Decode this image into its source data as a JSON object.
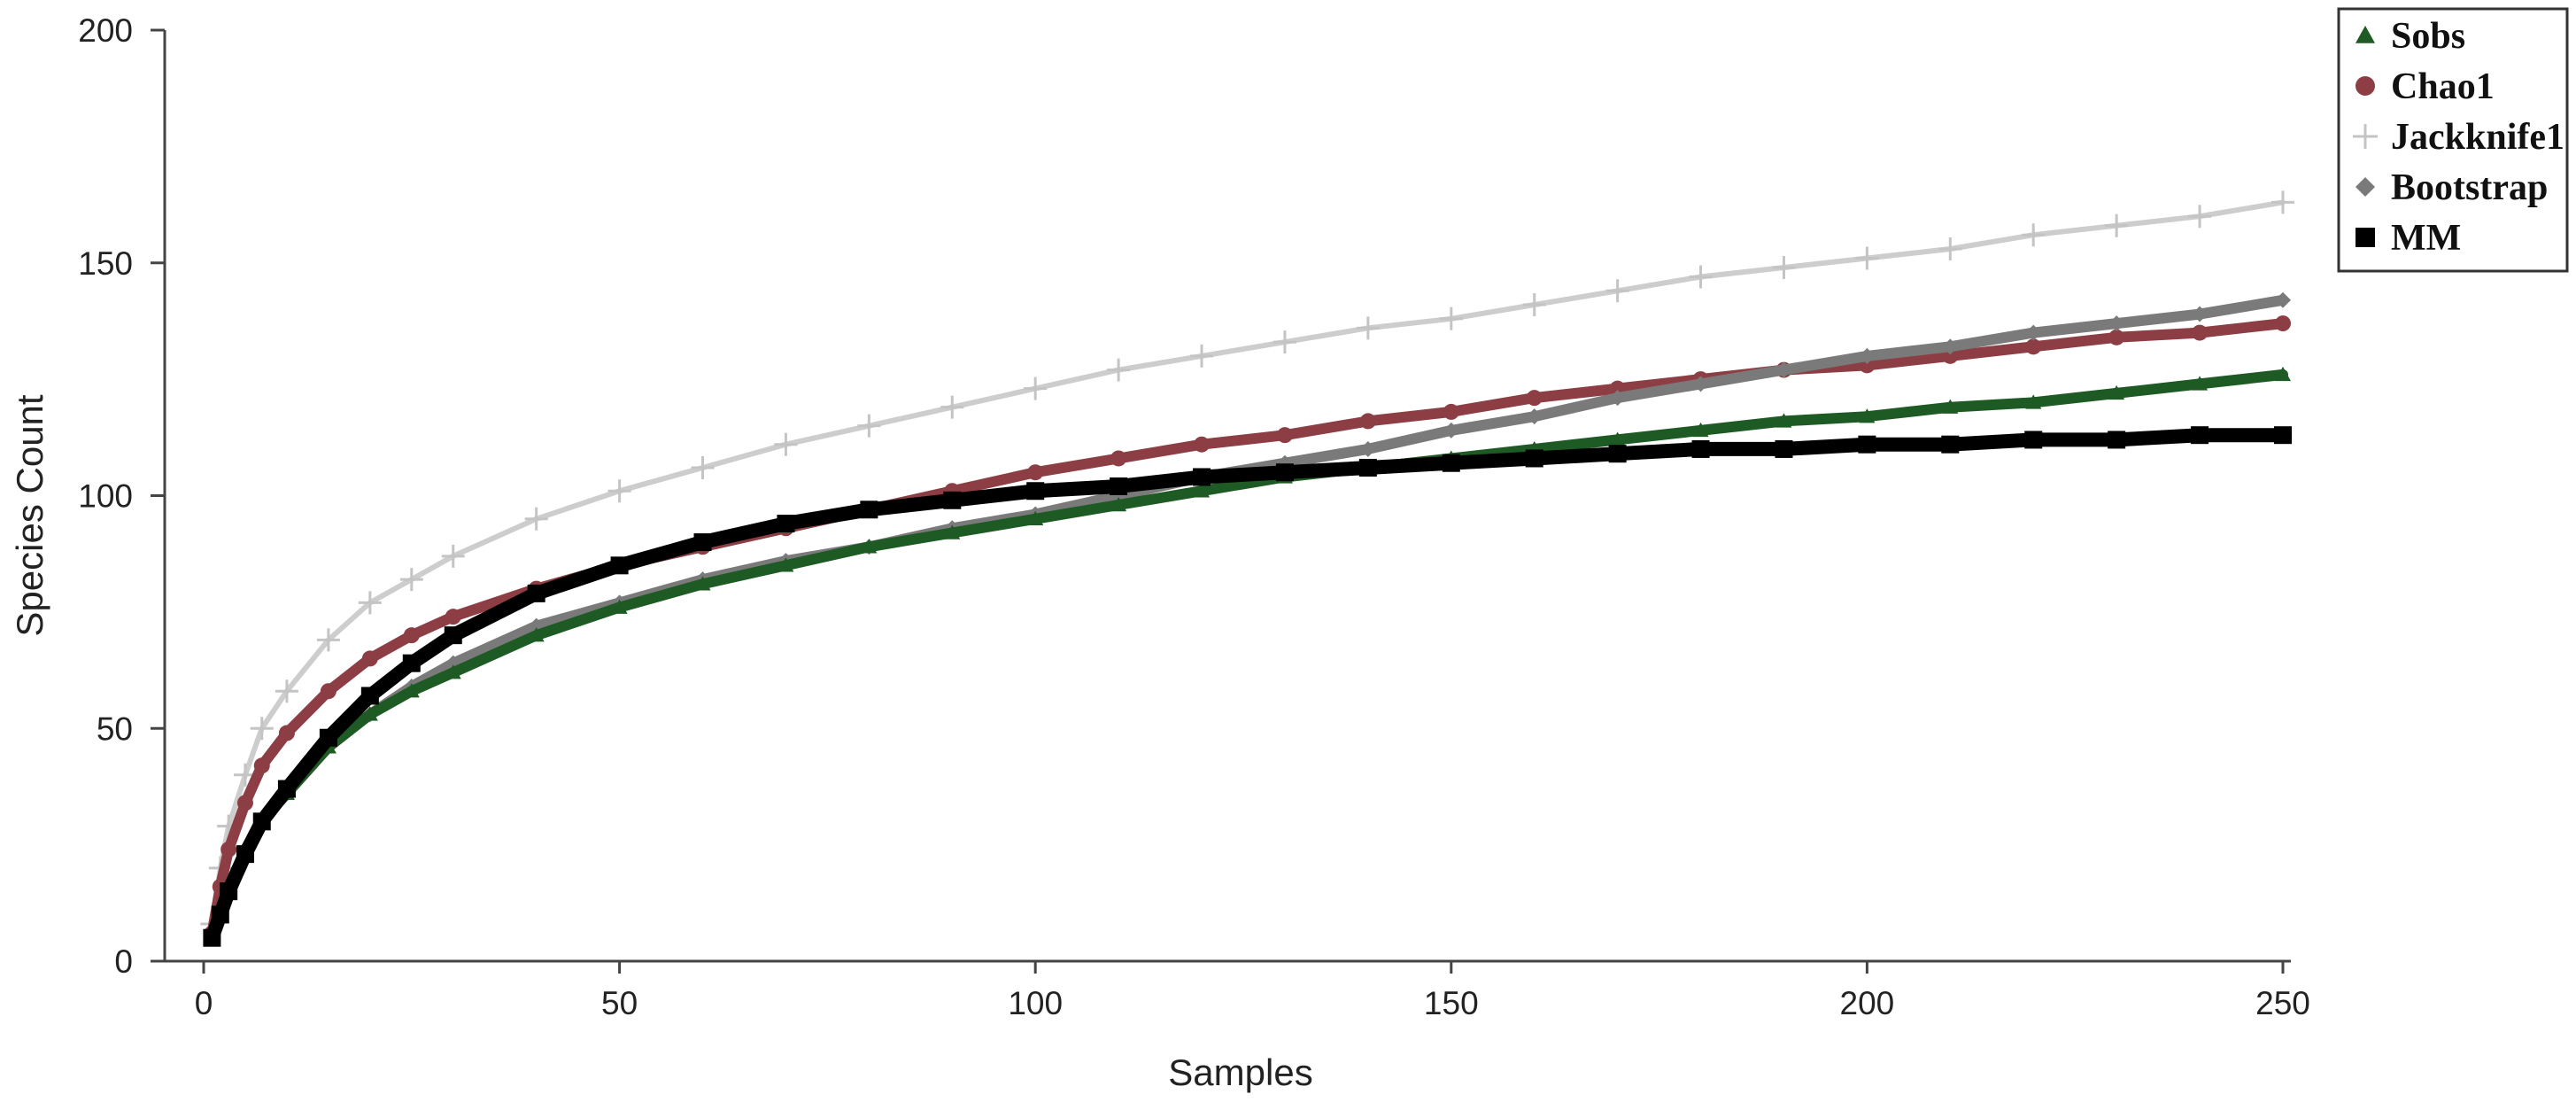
{
  "chart_data": {
    "type": "line",
    "xlabel": "Samples",
    "ylabel": "Species Count",
    "xlim": [
      0,
      250
    ],
    "ylim": [
      0,
      200
    ],
    "xticks": [
      "0",
      "50",
      "100",
      "150",
      "200",
      "250"
    ],
    "yticks": [
      "0",
      "50",
      "100",
      "150",
      "200"
    ],
    "grid": false,
    "legend_position": "top-right",
    "x": [
      1,
      2,
      3,
      5,
      7,
      10,
      15,
      20,
      25,
      30,
      40,
      50,
      60,
      70,
      80,
      90,
      100,
      110,
      120,
      130,
      140,
      150,
      160,
      170,
      180,
      190,
      200,
      210,
      220,
      230,
      240,
      250
    ],
    "series": [
      {
        "name": "Sobs",
        "marker": "triangle-icon",
        "color": "#1e5a24",
        "values": [
          5,
          11,
          16,
          24,
          30,
          36,
          46,
          53,
          58,
          62,
          70,
          76,
          81,
          85,
          89,
          92,
          95,
          98,
          101,
          104,
          106,
          108,
          110,
          112,
          114,
          116,
          117,
          119,
          120,
          122,
          124,
          126
        ]
      },
      {
        "name": "Chao1",
        "marker": "circle-icon",
        "color": "#8c3e44",
        "values": [
          6,
          16,
          24,
          34,
          42,
          49,
          58,
          65,
          70,
          74,
          80,
          85,
          89,
          93,
          97,
          101,
          105,
          108,
          111,
          113,
          116,
          118,
          121,
          123,
          125,
          127,
          128,
          130,
          132,
          134,
          135,
          137
        ]
      },
      {
        "name": "Jackknife1",
        "marker": "plus-icon",
        "color": "#c4c4c4",
        "values": [
          8,
          20,
          29,
          40,
          50,
          58,
          69,
          77,
          82,
          87,
          95,
          101,
          106,
          111,
          115,
          119,
          123,
          127,
          130,
          133,
          136,
          138,
          141,
          144,
          147,
          149,
          151,
          153,
          156,
          158,
          160,
          163
        ]
      },
      {
        "name": "Bootstrap",
        "marker": "diamond-icon",
        "color": "#7a7a7a",
        "values": [
          5,
          11,
          16,
          24,
          30,
          36,
          46,
          53,
          59,
          64,
          72,
          77,
          82,
          86,
          89,
          93,
          96,
          100,
          104,
          107,
          110,
          114,
          117,
          121,
          124,
          127,
          130,
          132,
          135,
          137,
          139,
          142
        ]
      },
      {
        "name": "MM",
        "marker": "square-icon",
        "color": "#000000",
        "values": [
          5,
          10,
          15,
          23,
          30,
          37,
          48,
          57,
          64,
          70,
          79,
          85,
          90,
          94,
          97,
          99,
          101,
          102,
          104,
          105,
          106,
          107,
          108,
          109,
          110,
          110,
          111,
          111,
          112,
          112,
          113,
          113
        ]
      }
    ]
  }
}
